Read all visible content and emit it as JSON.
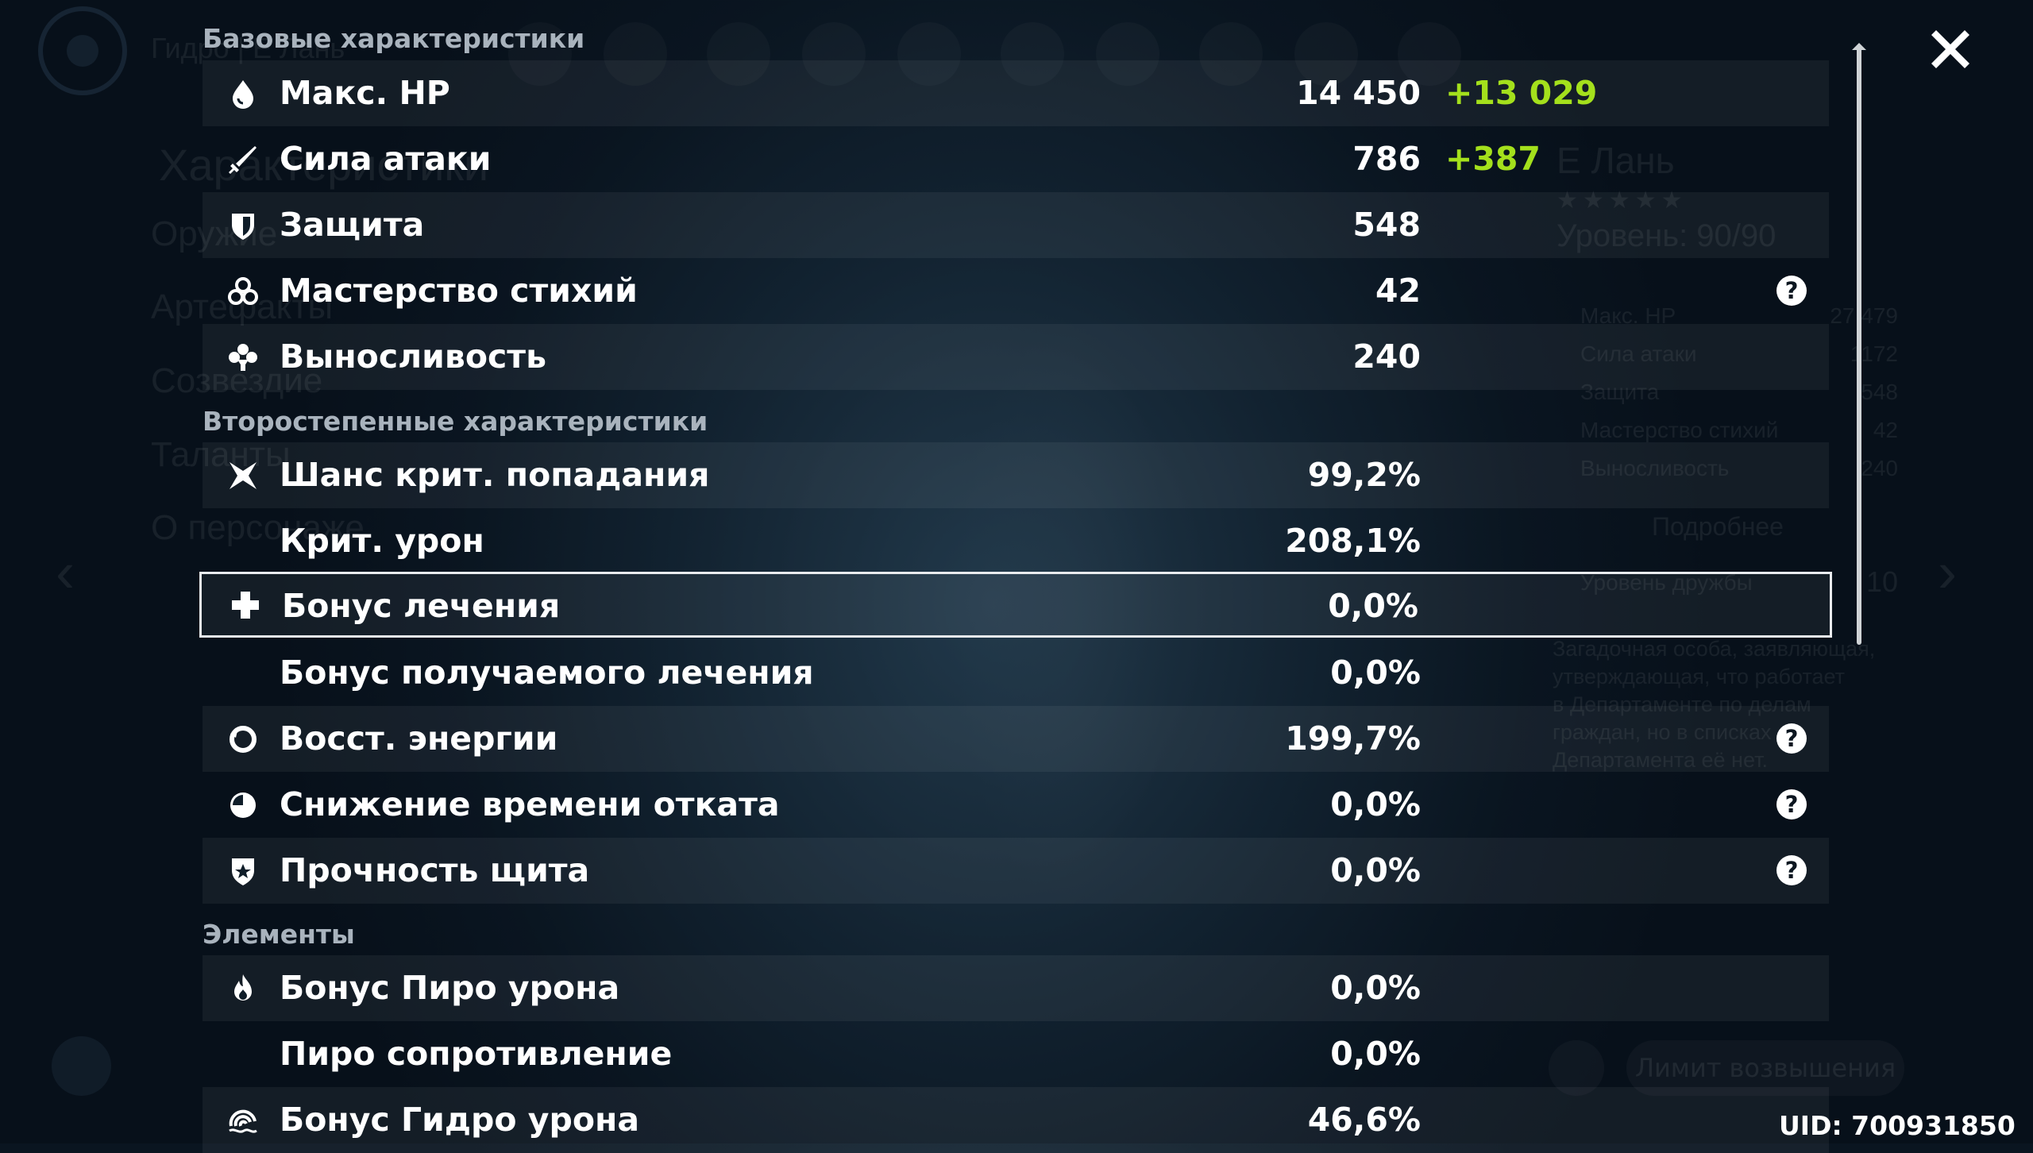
{
  "background": {
    "title": "Гидро | Е Лань",
    "menu": [
      "Характеристики",
      "Оружие",
      "Артефакты",
      "Созвездие",
      "Таланты",
      "О персонаже"
    ],
    "card": {
      "name": "Е Лань",
      "stars": "★★★★★",
      "level": "Уровень: 90/90",
      "stats": [
        {
          "label": "Макс. HP",
          "value": "27 479"
        },
        {
          "label": "Сила атаки",
          "value": "1172"
        },
        {
          "label": "Защита",
          "value": "548"
        },
        {
          "label": "Мастерство стихий",
          "value": "42"
        },
        {
          "label": "Выносливость",
          "value": "240"
        }
      ],
      "more": "Подробнее",
      "friendship_label": "Уровень дружбы",
      "friendship_value": "10",
      "desc": [
        "Загадочная особа, заявляющая,",
        "утверждающая, что работает",
        "в Департаменте по делам",
        "граждан, но в списках",
        "Департамента её нет."
      ]
    },
    "ascension_button": "Лимит возвышения"
  },
  "sections": {
    "base": "Базовые характеристики",
    "secondary": "Второстепенные характеристики",
    "elements": "Элементы"
  },
  "base_stats": [
    {
      "icon": "hp-drop-icon",
      "label": "Макс. HP",
      "value": "14 450",
      "bonus": "+13 029",
      "help": false
    },
    {
      "icon": "sword-icon",
      "label": "Сила атаки",
      "value": "786",
      "bonus": "+387",
      "help": false
    },
    {
      "icon": "shield-icon",
      "label": "Защита",
      "value": "548",
      "bonus": "",
      "help": false
    },
    {
      "icon": "elemental-mastery-icon",
      "label": "Мастерство стихий",
      "value": "42",
      "bonus": "",
      "help": true
    },
    {
      "icon": "stamina-icon",
      "label": "Выносливость",
      "value": "240",
      "bonus": "",
      "help": false
    }
  ],
  "secondary_stats": [
    {
      "icon": "crit-rate-icon",
      "label": "Шанс крит. попадания",
      "value": "99,2%",
      "help": false
    },
    {
      "icon": "",
      "label": "Крит. урон",
      "value": "208,1%",
      "help": false
    },
    {
      "icon": "healing-cross-icon",
      "label": "Бонус лечения",
      "value": "0,0%",
      "help": false
    },
    {
      "icon": "",
      "label": "Бонус получаемого лечения",
      "value": "0,0%",
      "help": false
    },
    {
      "icon": "energy-recharge-icon",
      "label": "Восст. энергии",
      "value": "199,7%",
      "help": true
    },
    {
      "icon": "cooldown-icon",
      "label": "Снижение времени отката",
      "value": "0,0%",
      "help": true
    },
    {
      "icon": "shield-strength-icon",
      "label": "Прочность щита",
      "value": "0,0%",
      "help": true
    }
  ],
  "element_stats": [
    {
      "icon": "pyro-icon",
      "label": "Бонус Пиро урона",
      "value": "0,0%"
    },
    {
      "icon": "",
      "label": "Пиро сопротивление",
      "value": "0,0%"
    },
    {
      "icon": "hydro-icon",
      "label": "Бонус Гидро урона",
      "value": "46,6%"
    }
  ],
  "help_glyph": "?",
  "uid": "UID: 700931850",
  "colors": {
    "bonus": "#a4e01c",
    "section_title": "#a9b3bd"
  }
}
